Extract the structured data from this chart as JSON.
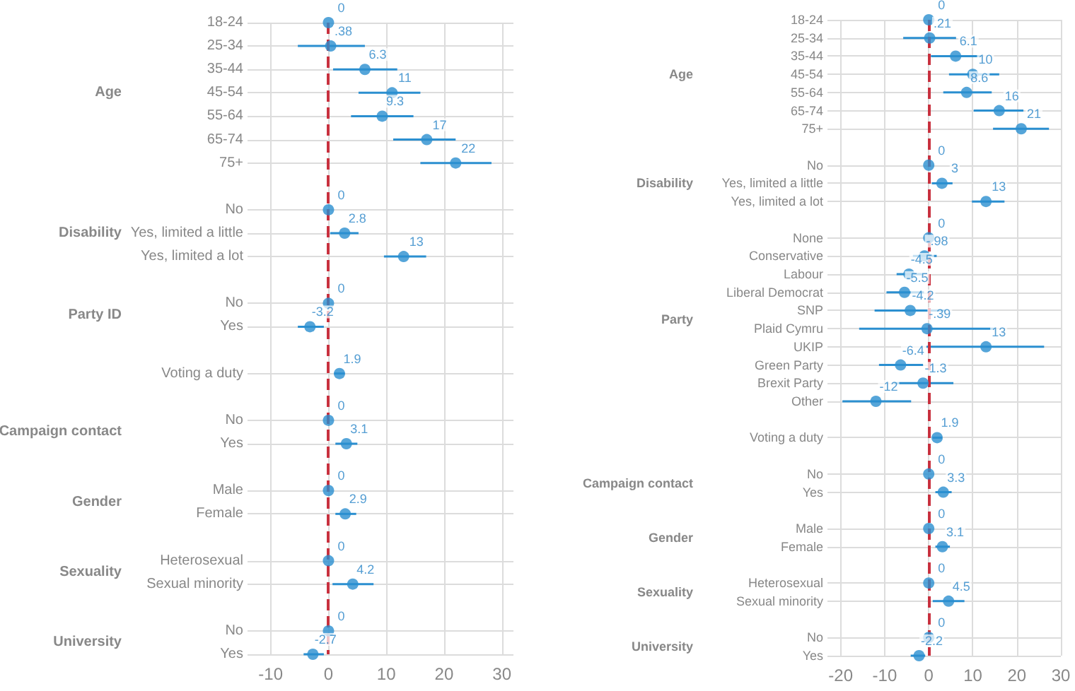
{
  "chart_data": [
    {
      "type": "scatter",
      "orientation": "horizontal",
      "marker": "circle",
      "grid": true,
      "color": "#2b8fd0",
      "categories": [
        "18-24",
        "25-34",
        "35-44",
        "45-54",
        "55-64",
        "65-74",
        "75+",
        null,
        "No",
        "Yes, limited a little",
        "Yes, limited a lot",
        null,
        "No",
        "Yes",
        null,
        "Voting a duty",
        null,
        "No",
        "Yes",
        null,
        "Male",
        "Female",
        null,
        "Heterosexual",
        "Sexual minority",
        null,
        "No",
        "Yes"
      ],
      "values": [
        0,
        0.38,
        6.3,
        11,
        9.3,
        17,
        22,
        null,
        0,
        2.8,
        13,
        null,
        0,
        -3.2,
        null,
        1.9,
        null,
        0,
        3.1,
        null,
        0,
        2.9,
        null,
        0,
        4.2,
        null,
        0,
        -2.7
      ],
      "errors": [
        null,
        [
          -5.3,
          6.3
        ],
        [
          0.8,
          11.9
        ],
        [
          5.2,
          15.9
        ],
        [
          3.9,
          14.7
        ],
        [
          11.2,
          22.0
        ],
        [
          15.9,
          28.2
        ],
        null,
        null,
        [
          0.3,
          5.2
        ],
        [
          9.6,
          16.9
        ],
        null,
        null,
        [
          -5.3,
          -0.8
        ],
        null,
        [
          1.0,
          2.8
        ],
        null,
        null,
        [
          1.2,
          5.0
        ],
        null,
        null,
        [
          1.2,
          4.8
        ],
        null,
        null,
        [
          0.7,
          7.8
        ],
        null,
        null,
        [
          -4.3,
          -0.8
        ]
      ],
      "value_labels": [
        "0",
        ".38",
        "6.3",
        "11",
        "9.3",
        "17",
        "22",
        null,
        "0",
        "2.8",
        "13",
        null,
        "0",
        "-3.2",
        null,
        "1.9",
        null,
        "0",
        "3.1",
        null,
        "0",
        "2.9",
        null,
        "0",
        "4.2",
        null,
        "0",
        "-2.7"
      ],
      "xlim": [
        -14,
        32
      ],
      "xticks": [
        -10,
        0,
        10,
        20,
        30
      ],
      "ref_lines": [
        {
          "axis": "x",
          "value": 0,
          "color": "#c8313f",
          "line_style": "dashed"
        }
      ],
      "annotations": [
        "Age",
        "Disability",
        "Party ID",
        "Campaign contact",
        "Gender",
        "Sexuality",
        "University"
      ]
    },
    {
      "type": "scatter",
      "orientation": "horizontal",
      "marker": "circle",
      "grid": true,
      "color": "#2b8fd0",
      "categories": [
        "18-24",
        "25-34",
        "35-44",
        "45-54",
        "55-64",
        "65-74",
        "75+",
        null,
        "No",
        "Yes, limited a little",
        "Yes, limited a lot",
        null,
        "None",
        "Conservative",
        "Labour",
        "Liberal Democrat",
        "SNP",
        "Plaid Cymru",
        "UKIP",
        "Green Party",
        "Brexit Party",
        "Other",
        null,
        "Voting a duty",
        null,
        "No",
        "Yes",
        null,
        "Male",
        "Female",
        null,
        "Heterosexual",
        "Sexual minority",
        null,
        "No",
        "Yes"
      ],
      "values": [
        0,
        0.21,
        6.1,
        10,
        8.6,
        16,
        21,
        null,
        0,
        3,
        13,
        null,
        0,
        -0.98,
        -4.5,
        -5.5,
        -4.2,
        -0.39,
        13,
        -6.4,
        -1.3,
        -12,
        null,
        1.9,
        null,
        0,
        3.3,
        null,
        0,
        3.1,
        null,
        0,
        4.5,
        null,
        0,
        -2.2
      ],
      "errors": [
        null,
        [
          -5.8,
          6.2
        ],
        [
          0.5,
          11.9
        ],
        [
          4.6,
          16.0
        ],
        [
          3.3,
          14.3
        ],
        [
          10.2,
          21.5
        ],
        [
          14.6,
          27.3
        ],
        null,
        null,
        [
          0.7,
          5.4
        ],
        [
          9.8,
          17.2
        ],
        null,
        null,
        [
          -3.6,
          1.8
        ],
        [
          -7.3,
          -1.5
        ],
        [
          -9.6,
          -1.1
        ],
        [
          -12.3,
          3.8
        ],
        [
          -15.8,
          14.9
        ],
        [
          -0.5,
          26.2
        ],
        [
          -11.3,
          -1.3
        ],
        [
          -8.0,
          5.6
        ],
        [
          -19.6,
          -4.0
        ],
        null,
        [
          0.9,
          3.0
        ],
        null,
        null,
        [
          1.5,
          5.2
        ],
        null,
        null,
        [
          1.5,
          4.8
        ],
        null,
        null,
        [
          0.9,
          8.1
        ],
        null,
        null,
        [
          -4.1,
          -0.8
        ]
      ],
      "value_labels": [
        "0",
        ".21",
        "6.1",
        "10",
        "8.6",
        "16",
        "21",
        null,
        "0",
        "3",
        "13",
        null,
        "0",
        "-.98",
        "-4.5",
        "-5.5",
        "-4.2",
        "-.39",
        "13",
        "-6.4",
        "-1.3",
        "-12",
        null,
        "1.9",
        null,
        "0",
        "3.3",
        null,
        "0",
        "3.1",
        null,
        "0",
        "4.5",
        null,
        "0",
        "-2.2"
      ],
      "xlim": [
        -23,
        30
      ],
      "xticks": [
        -20,
        -10,
        0,
        10,
        20,
        30
      ],
      "ref_lines": [
        {
          "axis": "x",
          "value": 0,
          "color": "#c8313f",
          "line_style": "dashed"
        }
      ],
      "annotations": [
        "Age",
        "Disability",
        "Party",
        "Campaign contact",
        "Gender",
        "Sexuality",
        "University"
      ]
    }
  ]
}
